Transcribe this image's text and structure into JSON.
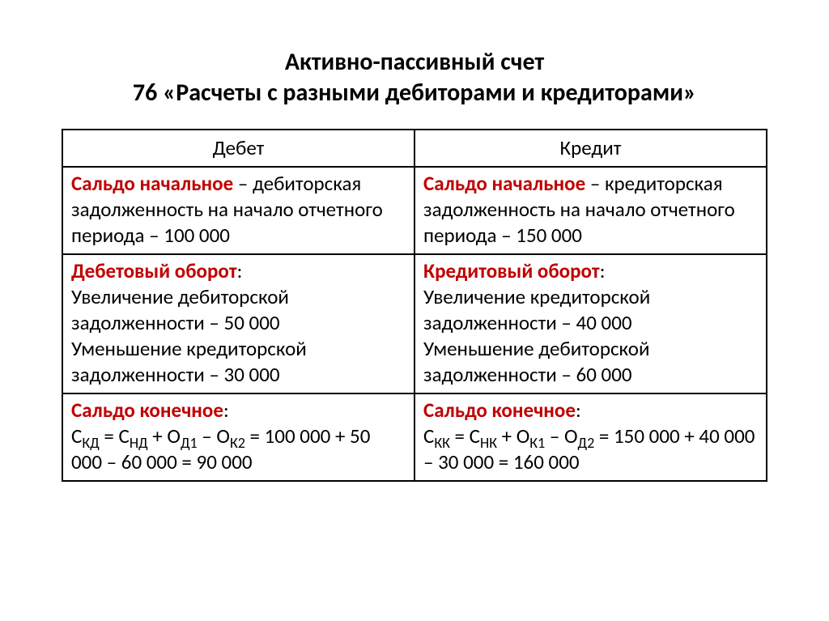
{
  "title": {
    "line1": "Активно-пассивный счет",
    "line2": "76 «Расчеты с разными дебиторами и кредиторами»"
  },
  "headers": {
    "debit": "Дебет",
    "credit": "Кредит"
  },
  "row1": {
    "debit": {
      "caption": "Сальдо начальное",
      "rest": " – дебиторская задолженность на начало отчетного периода – 100 000"
    },
    "credit": {
      "caption": "Сальдо начальное",
      "rest": " – кредиторская задолженность на начало отчетного периода – 150 000"
    }
  },
  "row2": {
    "debit": {
      "caption": "Дебетовый оборот",
      "line1": "Увеличение дебиторской задолженности – 50 000",
      "line2": "Уменьшение кредиторской задолженности – 30 000"
    },
    "credit": {
      "caption": "Кредитовый оборот",
      "line1": "Увеличение кредиторской задолженности – 40 000",
      "line2": "Уменьшение дебиторской задолженности – 60 000"
    }
  },
  "row3": {
    "debit": {
      "caption": "Сальдо конечное",
      "formula_prefix": "С",
      "sub1": "КД",
      "eq1": " = С",
      "sub2": "НД",
      "plus1": " + О",
      "sub3": "Д1",
      "minus1": " – О",
      "sub4": "К2",
      "tail": " = 100 000 + 50 000 – 60 000 = 90 000"
    },
    "credit": {
      "caption": "Сальдо конечное",
      "formula_prefix": "С",
      "sub1": "КК",
      "eq1": " = С",
      "sub2": "НК",
      "plus1": " + О",
      "sub3": "К1",
      "minus1": " – О",
      "sub4": "Д2",
      "tail": " = 150 000 + 40 000 – 30 000 = 160 000"
    }
  },
  "colon": ":"
}
